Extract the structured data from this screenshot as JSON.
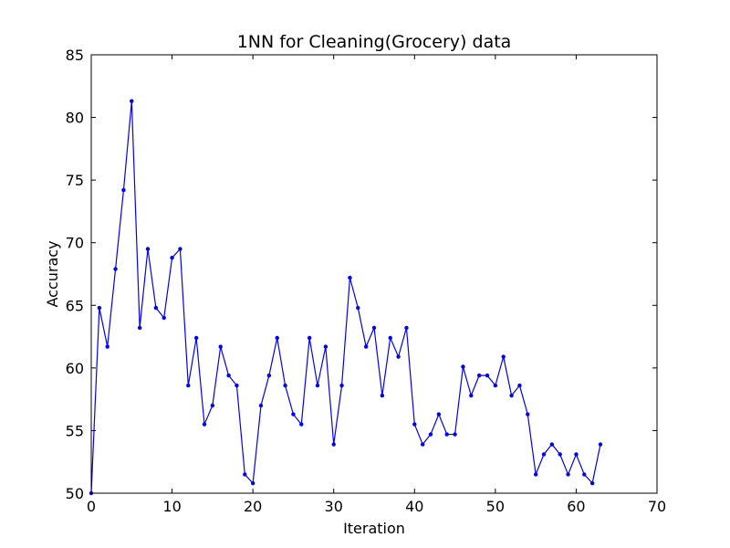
{
  "chart_data": {
    "type": "line",
    "title": "1NN for Cleaning(Grocery) data",
    "xlabel": "Iteration",
    "ylabel": "Accuracy",
    "xlim": [
      0,
      70
    ],
    "ylim": [
      50,
      85
    ],
    "xticks": [
      0,
      10,
      20,
      30,
      40,
      50,
      60,
      70
    ],
    "yticks": [
      50,
      55,
      60,
      65,
      70,
      75,
      80,
      85
    ],
    "grid": false,
    "series": [
      {
        "color": "#0000ff",
        "marker": "dot",
        "x": [
          0,
          1,
          2,
          3,
          4,
          5,
          6,
          7,
          8,
          9,
          10,
          11,
          12,
          13,
          14,
          15,
          16,
          17,
          18,
          19,
          20,
          21,
          22,
          23,
          24,
          25,
          26,
          27,
          28,
          29,
          30,
          31,
          32,
          33,
          34,
          35,
          36,
          37,
          38,
          39,
          40,
          41,
          42,
          43,
          44,
          45,
          46,
          47,
          48,
          49,
          50,
          51,
          52,
          53,
          54,
          55,
          56,
          57,
          58,
          59,
          60,
          61,
          62,
          63
        ],
        "values": [
          50.0,
          64.8,
          61.7,
          67.9,
          74.2,
          81.3,
          63.2,
          69.5,
          64.8,
          64.0,
          68.8,
          69.5,
          58.6,
          62.4,
          55.5,
          57.0,
          61.7,
          59.4,
          58.6,
          51.5,
          50.8,
          57.0,
          59.4,
          62.4,
          58.6,
          56.3,
          55.5,
          62.4,
          58.6,
          61.7,
          53.9,
          58.6,
          67.2,
          64.8,
          61.7,
          63.2,
          57.8,
          62.4,
          60.9,
          63.2,
          55.5,
          53.9,
          54.7,
          56.3,
          54.7,
          54.7,
          60.1,
          57.8,
          59.4,
          59.4,
          58.6,
          60.9,
          57.8,
          58.6,
          56.3,
          51.5,
          53.1,
          53.9,
          53.1,
          51.5,
          53.1,
          51.5,
          50.8,
          53.9
        ]
      }
    ]
  }
}
